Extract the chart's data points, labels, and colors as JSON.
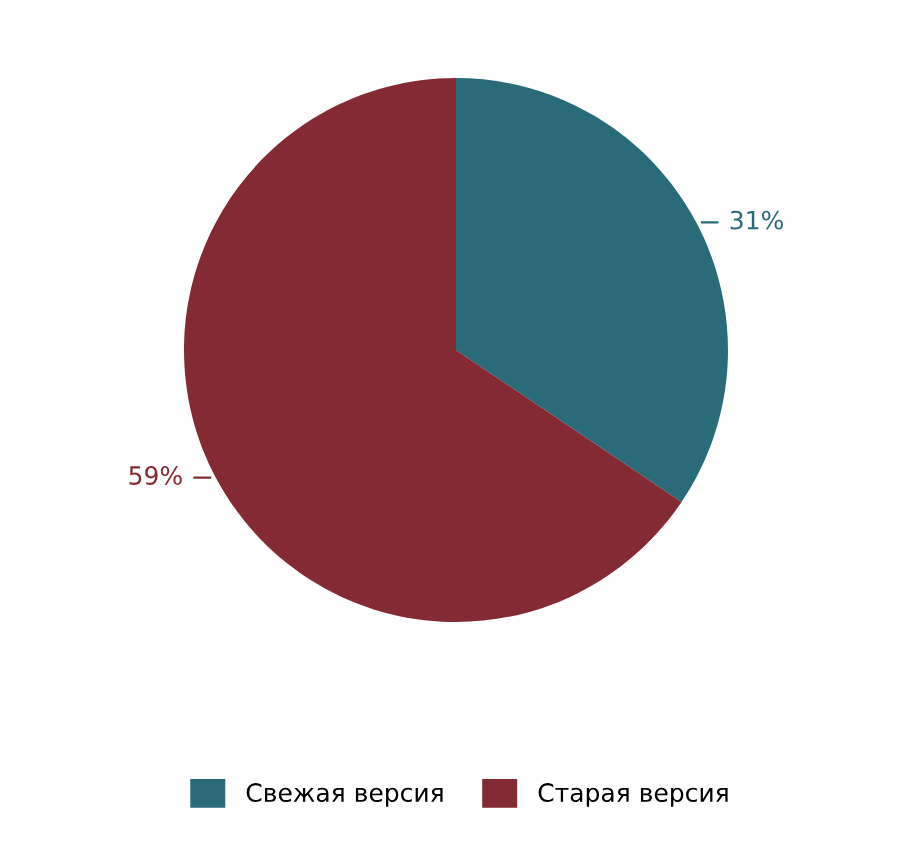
{
  "chart_data": {
    "type": "pie",
    "categories": [
      "Свежая версия",
      "Старая версия"
    ],
    "values": [
      31,
      59
    ],
    "value_labels": [
      "31%",
      "59%"
    ],
    "colors": [
      "#2a6b79",
      "#842a33"
    ],
    "legend": "bottom"
  }
}
